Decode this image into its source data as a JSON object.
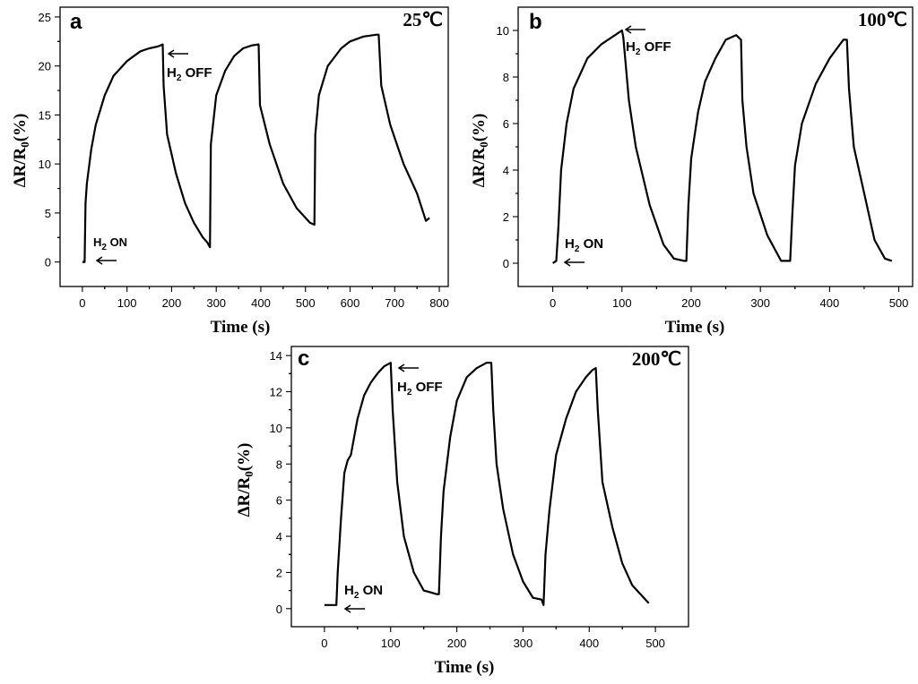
{
  "chart_data": [
    {
      "type": "line",
      "panel": "a",
      "temperature": "25℃",
      "xlabel": "Time (s)",
      "ylabel": "ΔR/R0(%)",
      "xlim": [
        -50,
        820
      ],
      "ylim": [
        -2.5,
        26
      ],
      "xticks": [
        0,
        100,
        200,
        300,
        400,
        500,
        600,
        700,
        800
      ],
      "yticks": [
        0,
        5,
        10,
        15,
        20,
        25
      ],
      "annotations": {
        "off": "H2 OFF",
        "on": "H2 ON"
      },
      "series": [
        {
          "name": "25℃",
          "x": [
            0,
            5,
            7,
            10,
            20,
            30,
            50,
            70,
            100,
            130,
            150,
            170,
            180,
            182,
            190,
            210,
            230,
            250,
            270,
            280,
            286,
            288,
            300,
            320,
            340,
            360,
            380,
            395,
            398,
            420,
            450,
            480,
            510,
            520,
            522,
            530,
            550,
            580,
            600,
            630,
            660,
            664,
            670,
            690,
            720,
            750,
            770,
            778
          ],
          "y": [
            0,
            0,
            6,
            8,
            11.5,
            14,
            17,
            19,
            20.5,
            21.5,
            21.8,
            22,
            22.2,
            18,
            13,
            9,
            6,
            4,
            2.5,
            2,
            1.5,
            12,
            17,
            19.5,
            21,
            21.8,
            22.1,
            22.2,
            16,
            12,
            8,
            5.5,
            4,
            3.8,
            13,
            17,
            20,
            21.8,
            22.5,
            23,
            23.2,
            23.2,
            18,
            14,
            10,
            7,
            4.2,
            4.5
          ]
        }
      ]
    },
    {
      "type": "line",
      "panel": "b",
      "temperature": "100℃",
      "xlabel": "Time (s)",
      "ylabel": "ΔR/R0(%)",
      "xlim": [
        -50,
        520
      ],
      "ylim": [
        -1,
        11
      ],
      "xticks": [
        0,
        100,
        200,
        300,
        400,
        500
      ],
      "yticks": [
        0,
        2,
        4,
        6,
        8,
        10
      ],
      "annotations": {
        "off": "H2 OFF",
        "on": "H2 ON"
      },
      "series": [
        {
          "name": "100℃",
          "x": [
            0,
            5,
            8,
            12,
            20,
            30,
            50,
            70,
            90,
            100,
            102,
            110,
            120,
            140,
            160,
            175,
            190,
            193,
            196,
            200,
            210,
            220,
            235,
            250,
            265,
            272,
            274,
            280,
            290,
            310,
            330,
            343,
            346,
            350,
            360,
            380,
            400,
            420,
            425,
            428,
            435,
            450,
            465,
            480,
            490
          ],
          "y": [
            0,
            0.1,
            1.5,
            4,
            6,
            7.5,
            8.8,
            9.4,
            9.8,
            10,
            9.7,
            7,
            5,
            2.5,
            0.8,
            0.2,
            0.1,
            0.1,
            2.5,
            4.5,
            6.5,
            7.8,
            8.8,
            9.6,
            9.8,
            9.6,
            7,
            5,
            3,
            1.2,
            0.1,
            0.1,
            2,
            4.2,
            6,
            7.7,
            8.8,
            9.6,
            9.6,
            7.5,
            5,
            3,
            1,
            0.2,
            0.1
          ]
        }
      ]
    },
    {
      "type": "line",
      "panel": "c",
      "temperature": "200℃",
      "xlabel": "Time (s)",
      "ylabel": "ΔR/R0(%)",
      "xlim": [
        -50,
        550
      ],
      "ylim": [
        -1,
        14.5
      ],
      "xticks": [
        0,
        100,
        200,
        300,
        400,
        500
      ],
      "yticks": [
        0,
        2,
        4,
        6,
        8,
        10,
        12,
        14
      ],
      "annotations": {
        "off": "H2 OFF",
        "on": "H2 ON"
      },
      "series": [
        {
          "name": "200℃",
          "x": [
            0,
            10,
            18,
            20,
            25,
            30,
            35,
            40,
            50,
            60,
            70,
            80,
            90,
            100,
            103,
            110,
            120,
            135,
            150,
            160,
            170,
            173,
            176,
            180,
            190,
            200,
            215,
            230,
            245,
            252,
            255,
            260,
            270,
            285,
            300,
            315,
            328,
            331,
            334,
            340,
            350,
            365,
            380,
            395,
            405,
            410,
            413,
            420,
            435,
            450,
            465,
            480,
            490
          ],
          "y": [
            0.2,
            0.2,
            0.2,
            2,
            5,
            7.5,
            8.2,
            8.5,
            10.5,
            11.8,
            12.5,
            13,
            13.4,
            13.6,
            11,
            7,
            4,
            2,
            1,
            0.9,
            0.8,
            0.8,
            4,
            6.5,
            9.5,
            11.5,
            12.8,
            13.3,
            13.6,
            13.6,
            11,
            8,
            5.5,
            3,
            1.5,
            0.6,
            0.5,
            0.2,
            3,
            5.5,
            8.5,
            10.5,
            12,
            12.8,
            13.2,
            13.3,
            11,
            7,
            4.5,
            2.5,
            1.3,
            0.7,
            0.3
          ]
        }
      ]
    }
  ]
}
